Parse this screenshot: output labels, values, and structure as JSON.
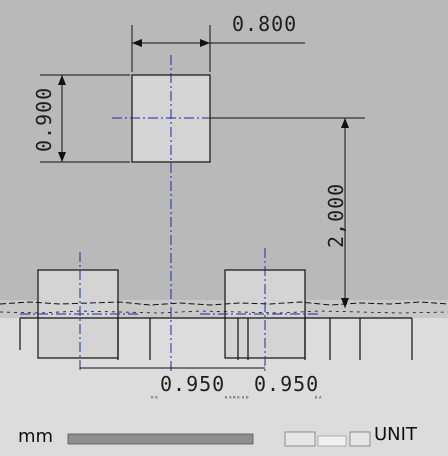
{
  "dimensions": {
    "width_top": "0.800",
    "height_top": "0.900",
    "vertical_gap": "2,000",
    "spacing_left": "0.950",
    "spacing_right": "0.950"
  },
  "small_notes": {
    "note_left": "ᴴᴼ",
    "note_mid": "ᴰᴬᴿᴷᴬᴰ",
    "note_right": "ᴰᴬ"
  },
  "footer": {
    "unit_left": "mm",
    "unit_right": "UNIT"
  },
  "colors": {
    "background": "#b9b9b9",
    "ground": "#dcdcdc",
    "pad_fill": "#d4d4d4",
    "outline": "#111111",
    "center_line": "#1f2a9e"
  }
}
